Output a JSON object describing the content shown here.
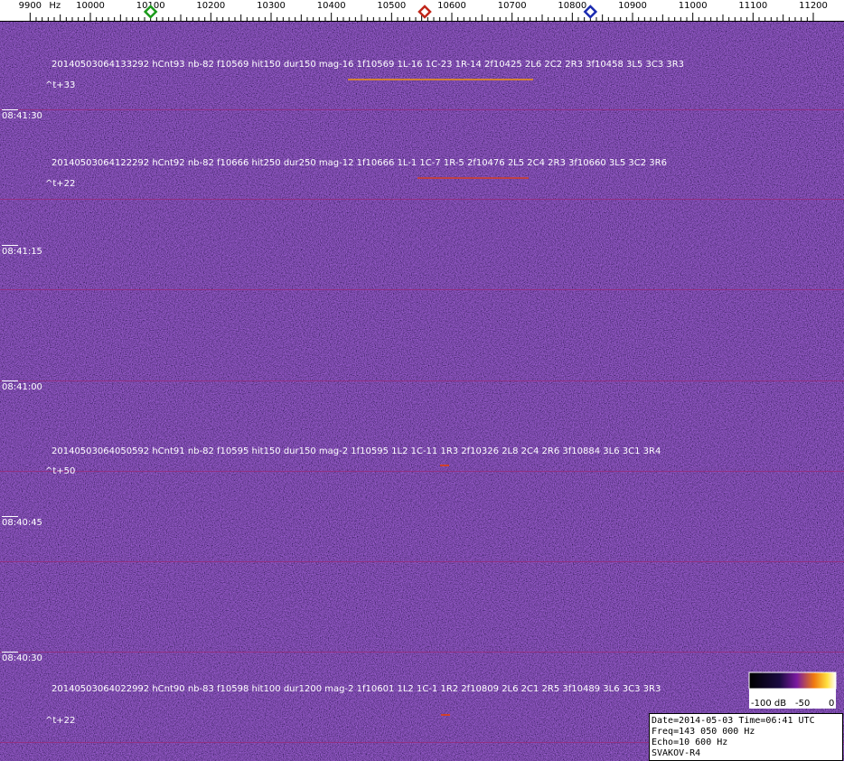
{
  "frequency_axis": {
    "unit": "Hz",
    "xlim": [
      9850,
      11251
    ],
    "ticks": [
      9900,
      10000,
      10100,
      10200,
      10300,
      10400,
      10500,
      10600,
      10700,
      10800,
      10900,
      11000,
      11100,
      11200
    ],
    "markers": [
      {
        "value": 10100,
        "color": "#1a9a1a"
      },
      {
        "value": 10555,
        "color": "#c0261a"
      },
      {
        "value": 10830,
        "color": "#1a2ab0"
      }
    ]
  },
  "time_labels": [
    "08:41:30",
    "08:41:15",
    "08:41:00",
    "08:40:45",
    "08:40:30"
  ],
  "detections": [
    {
      "text": "20140503064133292 hCnt93 nb-82 f10569 hit150 dur150 mag-16 1f10569 1L-16 1C-23 1R-14 2f10425 2L6 2C2 2R3 3f10458 3L5 3C3 3R3",
      "offset": "^t+33"
    },
    {
      "text": "20140503064122292 hCnt92 nb-82 f10666 hit250 dur250 mag-12 1f10666 1L-1 1C-7 1R-5 2f10476 2L5 2C4 2R3 3f10660 3L5 3C2 3R6",
      "offset": "^t+22"
    },
    {
      "text": "20140503064050592 hCnt91 nb-82 f10595 hit150 dur150 mag-2 1f10595 1L2 1C-11 1R3 2f10326 2L8 2C4 2R6 3f10884 3L6 3C1 3R4",
      "offset": "^t+50"
    },
    {
      "text": "20140503064022992 hCnt90 nb-83 f10598 hit100 dur1200 mag-2 1f10601 1L2 1C-1 1R2 2f10809 2L6 2C1 2R5 3f10489 3L6 3C3 3R3",
      "offset": "^t+22"
    }
  ],
  "colorbar": {
    "labels": [
      "-100 dB",
      "-50",
      "0"
    ]
  },
  "info": [
    "Date=2014-05-03 Time=06:41 UTC",
    "Freq=143 050 000 Hz",
    "Echo=10 600 Hz",
    "SVAKOV-R4"
  ]
}
